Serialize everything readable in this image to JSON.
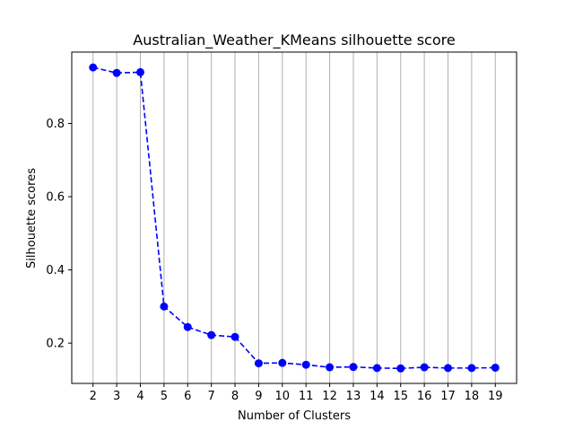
{
  "chart_data": {
    "type": "line",
    "title": "Australian_Weather_KMeans silhouette score",
    "xlabel": "Number of Clusters",
    "ylabel": "Silhouette scores",
    "x": [
      2,
      3,
      4,
      5,
      6,
      7,
      8,
      9,
      10,
      11,
      12,
      13,
      14,
      15,
      16,
      17,
      18,
      19
    ],
    "series": [
      {
        "values": [
          0.953,
          0.938,
          0.94,
          0.3,
          0.244,
          0.222,
          0.217,
          0.145,
          0.146,
          0.141,
          0.134,
          0.135,
          0.132,
          0.131,
          0.134,
          0.132,
          0.132,
          0.133
        ],
        "color": "#0000ff",
        "line_style": "dashed",
        "marker": "circle"
      }
    ],
    "xlim": [
      1.1,
      19.9
    ],
    "ylim": [
      0.09,
      0.995
    ],
    "yticks": [
      0.2,
      0.4,
      0.6,
      0.8
    ],
    "grid": "x",
    "grid_color": "#b0b0b0"
  }
}
